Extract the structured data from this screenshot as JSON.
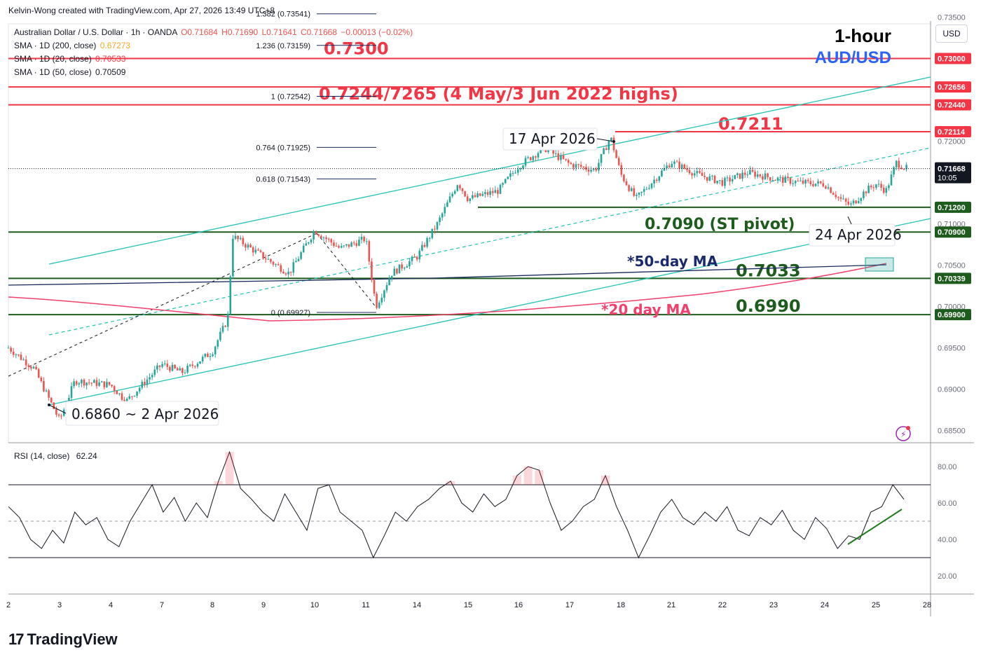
{
  "header": {
    "credit": "Kelvin-Wong created with TradingView.com, Apr 27, 2026 13:49 UTC+8"
  },
  "symbol": {
    "name": "Australian Dollar / U.S. Dollar · 1h · OANDA",
    "open": "O0.71684",
    "high": "H0.71690",
    "low": "L0.71641",
    "close": "C0.71668",
    "change": "−0.00013 (−0.02%)"
  },
  "indicators": [
    {
      "label": "SMA · 1D (200, close)",
      "value": "0.67273",
      "color": "#f5a623"
    },
    {
      "label": "SMA · 1D (20, close)",
      "value": "0.70533",
      "color": "#f23645"
    },
    {
      "label": "SMA · 1D (50, close)",
      "value": "0.70509",
      "color": "#131722"
    }
  ],
  "timeframe": {
    "line1": "1-hour",
    "line2": "AUD/USD"
  },
  "currency_button": "USD",
  "brand": {
    "name": "TradingView",
    "logo_text": "17"
  },
  "rsi": {
    "label": "RSI (14, close)",
    "value": "62.24"
  },
  "colors": {
    "up": "#26a69a",
    "down": "#ef5350",
    "channel": "#22c4b4",
    "red": "#f23645",
    "green": "#1e5c1e",
    "navy": "#1a2a6c",
    "ma20": "#f23f6b",
    "ma50": "#1a2a5c"
  },
  "chart_data": [
    {
      "type": "candlestick",
      "title": "Australian Dollar / U.S. Dollar · 1h · OANDA",
      "ylim": [
        0.6835,
        0.7342
      ],
      "y_ticks": [
        "0.73500",
        "0.72000",
        "0.71000",
        "0.70500",
        "0.70000",
        "0.69500",
        "0.69000",
        "0.68500"
      ],
      "x_ticks": [
        "2",
        "3",
        "4",
        "7",
        "8",
        "9",
        "10",
        "11",
        "14",
        "15",
        "16",
        "17",
        "18",
        "21",
        "22",
        "23",
        "24",
        "25",
        "28"
      ],
      "price_path": [
        [
          "2",
          0.695
        ],
        [
          "2.5",
          0.6925
        ],
        [
          "3",
          0.6862
        ],
        [
          "3.3",
          0.691
        ],
        [
          "4",
          0.6905
        ],
        [
          "4.3",
          0.6885
        ],
        [
          "7",
          0.693
        ],
        [
          "7.4",
          0.692
        ],
        [
          "8",
          0.6945
        ],
        [
          "8.3",
          0.6985
        ],
        [
          "8.4",
          0.7085
        ],
        [
          "9",
          0.706
        ],
        [
          "9.5",
          0.704
        ],
        [
          "10",
          0.7092
        ],
        [
          "10.5",
          0.707
        ],
        [
          "11",
          0.7082
        ],
        [
          "11.2",
          0.7
        ],
        [
          "11.5",
          0.704
        ],
        [
          "14",
          0.706
        ],
        [
          "14.4",
          0.71
        ],
        [
          "14.8",
          0.715
        ],
        [
          "15",
          0.713
        ],
        [
          "15.6",
          0.714
        ],
        [
          "16",
          0.717
        ],
        [
          "16.5",
          0.7192
        ],
        [
          "17",
          0.7172
        ],
        [
          "17.5",
          0.7165
        ],
        [
          "17.8",
          0.7205
        ],
        [
          "18",
          0.716
        ],
        [
          "18.3",
          0.713
        ],
        [
          "21",
          0.7175
        ],
        [
          "21.5",
          0.716
        ],
        [
          "22",
          0.715
        ],
        [
          "22.5",
          0.7162
        ],
        [
          "23",
          0.7155
        ],
        [
          "23.5",
          0.715
        ],
        [
          "24",
          0.7148
        ],
        [
          "24.3",
          0.713
        ],
        [
          "24.5",
          0.7122
        ],
        [
          "24.8",
          0.714
        ],
        [
          "25",
          0.7148
        ],
        [
          "25.2",
          0.714
        ],
        [
          "25.4",
          0.7174
        ],
        [
          "25.6",
          0.71668
        ]
      ],
      "horizontal_levels": [
        {
          "label": "0.7300",
          "price": 0.73,
          "tag": "0.73000",
          "color": "#f23645"
        },
        {
          "label": "0.7244/7265 (4 May/3 Jun 2022 highs)",
          "price": 0.72656,
          "tag": "0.72656",
          "color": "#f23645"
        },
        {
          "label": "",
          "price": 0.7244,
          "tag": "0.72440",
          "color": "#f23645"
        },
        {
          "label": "0.7211",
          "price": 0.72114,
          "tag": "0.72114",
          "color": "#f23645"
        },
        {
          "label": "",
          "price": 0.712,
          "tag": "0.71200",
          "color": "#1e5c1e"
        },
        {
          "label": "0.7090 (ST pivot)",
          "price": 0.709,
          "tag": "0.70900",
          "color": "#1e5c1e"
        },
        {
          "label": "0.7033",
          "price": 0.70339,
          "tag": "0.70339",
          "color": "#1e5c1e"
        },
        {
          "label": "0.6990",
          "price": 0.699,
          "tag": "0.69900",
          "color": "#1e5c1e"
        }
      ],
      "fibonacci": [
        {
          "label": "1.382 (0.73541)",
          "price": 0.73541
        },
        {
          "label": "1.236 (0.73159)",
          "price": 0.73159
        },
        {
          "label": "1 (0.72542)",
          "price": 0.72542
        },
        {
          "label": "0.764 (0.71925)",
          "price": 0.71925
        },
        {
          "label": "0.618 (0.71543)",
          "price": 0.71543
        },
        {
          "label": "0 (0.69927)",
          "price": 0.69927
        }
      ],
      "last_price": {
        "value": "0.71668",
        "time": "10:05"
      },
      "annotations": [
        "0.6860 ~ 2 Apr 2026",
        "17 Apr 2026",
        "24 Apr 2026",
        "*50-day MA",
        "*20 day MA"
      ]
    },
    {
      "type": "line",
      "title": "RSI (14, close)",
      "ylim": [
        10,
        90
      ],
      "y_ticks": [
        "80.00",
        "60.00",
        "40.00",
        "20.00"
      ],
      "bands": [
        70,
        50,
        30
      ],
      "values": [
        58,
        52,
        40,
        35,
        45,
        38,
        55,
        48,
        52,
        40,
        36,
        50,
        60,
        70,
        55,
        63,
        50,
        60,
        52,
        72,
        88,
        68,
        62,
        55,
        50,
        65,
        55,
        45,
        68,
        70,
        55,
        50,
        45,
        30,
        42,
        55,
        50,
        58,
        62,
        68,
        72,
        60,
        55,
        65,
        58,
        62,
        75,
        80,
        78,
        60,
        45,
        50,
        58,
        62,
        75,
        58,
        45,
        30,
        42,
        55,
        62,
        52,
        48,
        55,
        50,
        58,
        45,
        42,
        52,
        48,
        56,
        45,
        40,
        52,
        46,
        35,
        42,
        40,
        55,
        58,
        70,
        62
      ]
    }
  ]
}
